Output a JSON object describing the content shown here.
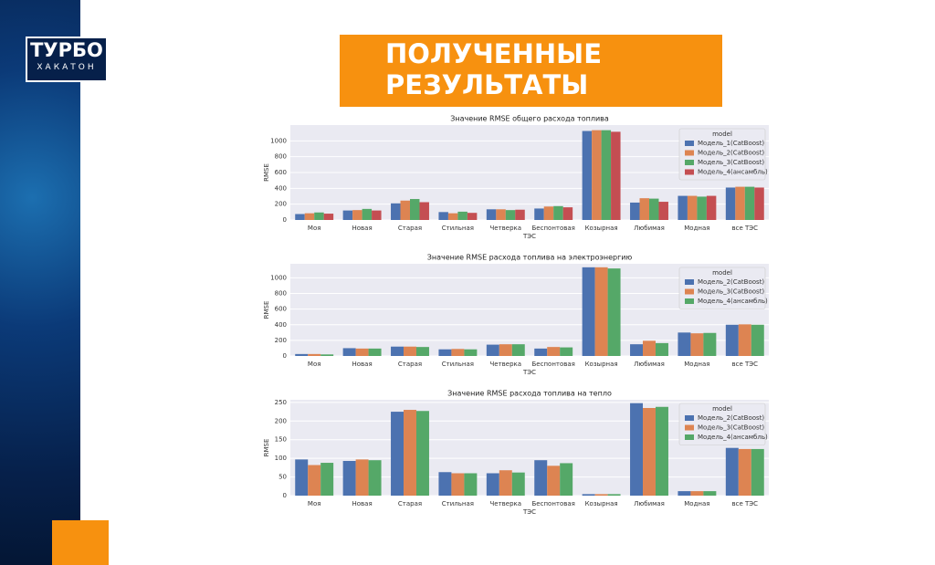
{
  "slide": {
    "logo": [
      "ТУРБО",
      "ХАКАТОН"
    ],
    "title_lines": [
      "ПОЛУЧЕННЫЕ",
      "РЕЗУЛЬТАТЫ"
    ]
  },
  "chart_data": [
    {
      "type": "bar",
      "title": "Значение RMSE общего расхода топлива",
      "x_label": "ТЭС",
      "y_label": "RMSE",
      "legend_title": "model",
      "legend": "upper right",
      "grid": true,
      "categories": [
        "Моя",
        "Новая",
        "Старая",
        "Стильная",
        "Четверка",
        "Беспонтовая",
        "Козырная",
        "Любимая",
        "Модная",
        "все ТЭС"
      ],
      "ylim": [
        0,
        1200
      ],
      "yticks": [
        0,
        200,
        400,
        600,
        800,
        1000
      ],
      "series": [
        {
          "name": "Модель_1(CatBoost)",
          "color": "#4c72b0",
          "values": [
            75,
            120,
            210,
            100,
            135,
            145,
            1125,
            220,
            305,
            410
          ]
        },
        {
          "name": "Модель_2(CatBoost)",
          "color": "#dd8452",
          "values": [
            85,
            125,
            245,
            85,
            135,
            170,
            1135,
            275,
            305,
            420
          ]
        },
        {
          "name": "Модель_3(CatBoost)",
          "color": "#55a868",
          "values": [
            95,
            140,
            265,
            105,
            125,
            175,
            1135,
            270,
            295,
            420
          ]
        },
        {
          "name": "Модель_4(ансамбль)",
          "color": "#c44e52",
          "values": [
            80,
            120,
            225,
            90,
            130,
            160,
            1115,
            230,
            305,
            410
          ]
        }
      ]
    },
    {
      "type": "bar",
      "title": "Значение RMSE расхода топлива на электроэнергию",
      "x_label": "ТЭС",
      "y_label": "RMSE",
      "legend_title": "model",
      "legend": "upper right",
      "grid": true,
      "categories": [
        "Моя",
        "Новая",
        "Старая",
        "Стильная",
        "Четверка",
        "Беспонтовая",
        "Козырная",
        "Любимая",
        "Модная",
        "все ТЭС"
      ],
      "ylim": [
        0,
        1180
      ],
      "yticks": [
        0,
        200,
        400,
        600,
        800,
        1000
      ],
      "series": [
        {
          "name": "Модель_2(CatBoost)",
          "color": "#4c72b0",
          "values": [
            25,
            100,
            120,
            85,
            145,
            95,
            1135,
            150,
            300,
            400
          ]
        },
        {
          "name": "Модель_3(CatBoost)",
          "color": "#dd8452",
          "values": [
            25,
            95,
            120,
            90,
            150,
            115,
            1135,
            195,
            290,
            405
          ]
        },
        {
          "name": "Модель_4(ансамбль)",
          "color": "#55a868",
          "values": [
            20,
            95,
            115,
            85,
            150,
            110,
            1120,
            165,
            295,
            400
          ]
        }
      ]
    },
    {
      "type": "bar",
      "title": "Значение RMSE расхода топлива на тепло",
      "x_label": "ТЭС",
      "y_label": "RMSE",
      "legend_title": "model",
      "legend": "upper right",
      "grid": true,
      "categories": [
        "Моя",
        "Новая",
        "Старая",
        "Стильная",
        "Четверка",
        "Беспонтовая",
        "Козырная",
        "Любимая",
        "Модная",
        "все ТЭС"
      ],
      "ylim": [
        0,
        257
      ],
      "yticks": [
        0,
        50,
        100,
        150,
        200,
        250
      ],
      "series": [
        {
          "name": "Модель_2(CatBoost)",
          "color": "#4c72b0",
          "values": [
            97,
            93,
            225,
            63,
            60,
            95,
            4,
            248,
            12,
            128
          ]
        },
        {
          "name": "Модель_3(CatBoost)",
          "color": "#dd8452",
          "values": [
            82,
            97,
            230,
            60,
            68,
            80,
            4,
            235,
            12,
            125
          ]
        },
        {
          "name": "Модель_4(ансамбль)",
          "color": "#55a868",
          "values": [
            88,
            95,
            227,
            60,
            62,
            87,
            4,
            238,
            12,
            125
          ]
        }
      ]
    }
  ]
}
